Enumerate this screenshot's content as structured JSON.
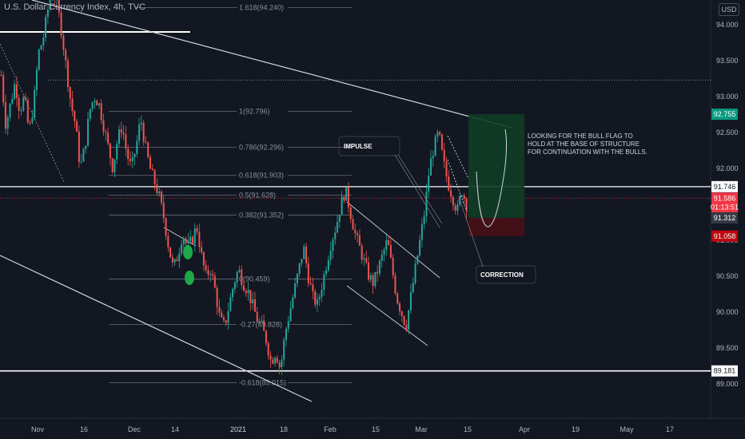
{
  "symbol": "U.S. Dollar Currency Index, 4h, TVC",
  "currency": "USD",
  "chart_data": {
    "type": "candlestick",
    "title": "U.S. Dollar Currency Index, 4h, TVC",
    "ylim": [
      88.6,
      94.55
    ],
    "y_ticks": [
      "94.000",
      "93.500",
      "93.000",
      "92.500",
      "92.000",
      "91.500",
      "91.000",
      "90.500",
      "90.000",
      "89.500",
      "89.000"
    ],
    "x_ticks": [
      "Nov",
      "16",
      "Dec",
      "14",
      "2021",
      "18",
      "Feb",
      "15",
      "Mar",
      "15",
      "Apr",
      "19",
      "May",
      "17"
    ],
    "fib_levels": [
      {
        "label": "1.618(94.240)",
        "value": 94.24
      },
      {
        "label": "1(92.796)",
        "value": 92.796
      },
      {
        "label": "0.786(92.296)",
        "value": 92.296
      },
      {
        "label": "0.618(91.903)",
        "value": 91.903
      },
      {
        "label": "0.5(91.628)",
        "value": 91.628
      },
      {
        "label": "0.382(91.352)",
        "value": 91.352
      },
      {
        "label": "0(90.459)",
        "value": 90.459
      },
      {
        "label": "-0.27(89.828)",
        "value": 89.828
      },
      {
        "label": "-0.618(89.015)",
        "value": 89.015
      }
    ],
    "price_tags": [
      {
        "label": "92.755",
        "value": 92.755,
        "color": "#089981"
      },
      {
        "label": "91.746",
        "value": 91.746,
        "color": "#ffffff"
      },
      {
        "label": "91.586",
        "value": 91.586,
        "color": "#f23645"
      },
      {
        "label": "01:13:51",
        "value": 91.5,
        "color": "#f23645"
      },
      {
        "label": "91.312",
        "value": 91.312,
        "color": "#363a45"
      },
      {
        "label": "91.058",
        "value": 91.058,
        "color": "#c2000d"
      },
      {
        "label": "89.181",
        "value": 89.181,
        "color": "#ffffff"
      }
    ],
    "annotations": {
      "impulse": "IMPULSE",
      "correction": "CORRECTION",
      "note": [
        "LOOKING FOR THE BULL FLAG TO",
        "HOLD AT THE BASE OF STRUCTURE",
        "FOR CONTINUATION WITH THE BULLS."
      ]
    },
    "position": {
      "target": 92.755,
      "entry": 91.312,
      "stop": 91.058
    },
    "price_path": [
      93.3,
      92.6,
      92.9,
      93.2,
      92.8,
      93.0,
      92.5,
      92.9,
      93.6,
      93.8,
      94.2,
      94.5,
      94.3,
      93.9,
      93.4,
      92.9,
      92.6,
      92.0,
      92.3,
      92.8,
      93.0,
      92.9,
      92.6,
      92.3,
      92.0,
      92.4,
      92.6,
      92.2,
      92.0,
      92.3,
      92.7,
      92.3,
      92.0,
      91.8,
      91.6,
      91.3,
      90.9,
      90.6,
      90.8,
      91.1,
      90.9,
      91.0,
      91.2,
      90.8,
      90.5,
      90.6,
      90.3,
      89.9,
      89.8,
      90.1,
      90.4,
      90.6,
      90.4,
      90.3,
      90.1,
      89.9,
      89.8,
      89.6,
      89.3,
      89.45,
      89.2,
      89.7,
      90.0,
      90.3,
      90.6,
      90.9,
      90.5,
      90.2,
      90.1,
      90.4,
      90.7,
      91.0,
      91.2,
      91.5,
      91.7,
      91.4,
      91.1,
      90.9,
      90.7,
      90.5,
      90.4,
      90.6,
      90.8,
      91.0,
      90.6,
      90.2,
      90.0,
      89.8,
      90.2,
      90.6,
      91.0,
      91.4,
      92.0,
      92.3,
      92.5,
      92.1,
      91.8,
      91.6,
      91.4,
      91.7,
      91.5
    ]
  }
}
